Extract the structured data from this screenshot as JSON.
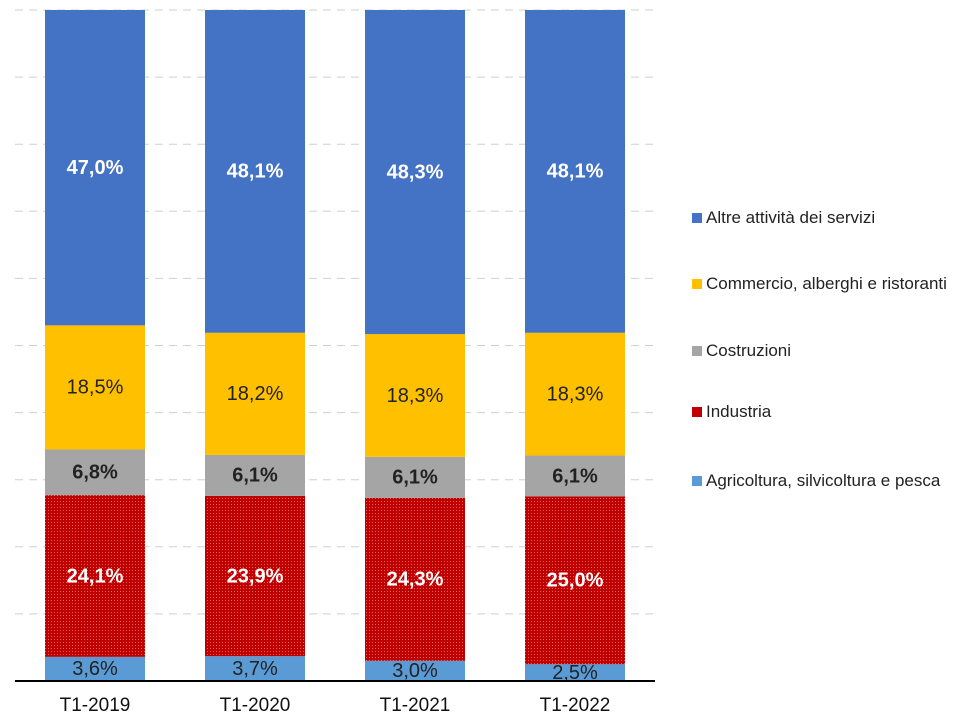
{
  "chart_data": {
    "type": "stacked_bar",
    "categories": [
      "T1-2019",
      "T1-2020",
      "T1-2021",
      "T1-2022"
    ],
    "series": [
      {
        "name": "Agricoltura, silvicoltura e pesca",
        "color": "#5b9bd5",
        "values": [
          3.6,
          3.7,
          3.0,
          2.5
        ],
        "value_labels": [
          "3,6%",
          "3,7%",
          "3,0%",
          "2,5%"
        ]
      },
      {
        "name": "Industria",
        "color": "#c00000",
        "values": [
          24.1,
          23.9,
          24.3,
          25.0
        ],
        "value_labels": [
          "24,1%",
          "23,9%",
          "24,3%",
          "25,0%"
        ]
      },
      {
        "name": "Costruzioni",
        "color": "#a5a5a5",
        "values": [
          6.8,
          6.1,
          6.1,
          6.1
        ],
        "value_labels": [
          "6,8%",
          "6,1%",
          "6,1%",
          "6,1%"
        ]
      },
      {
        "name": "Commercio, alberghi e ristoranti",
        "color": "#ffc000",
        "values": [
          18.5,
          18.2,
          18.3,
          18.3
        ],
        "value_labels": [
          "18,5%",
          "18,2%",
          "18,3%",
          "18,3%"
        ]
      },
      {
        "name": "Altre attività dei servizi",
        "color": "#4472c4",
        "values": [
          47.0,
          48.1,
          48.3,
          48.1
        ],
        "value_labels": [
          "47,0%",
          "48,1%",
          "48,3%",
          "48,1%"
        ]
      }
    ],
    "ylim": [
      0,
      100
    ],
    "yticks": [
      0,
      10,
      20,
      30,
      40,
      50,
      60,
      70,
      80,
      90,
      100
    ],
    "grid": true
  }
}
